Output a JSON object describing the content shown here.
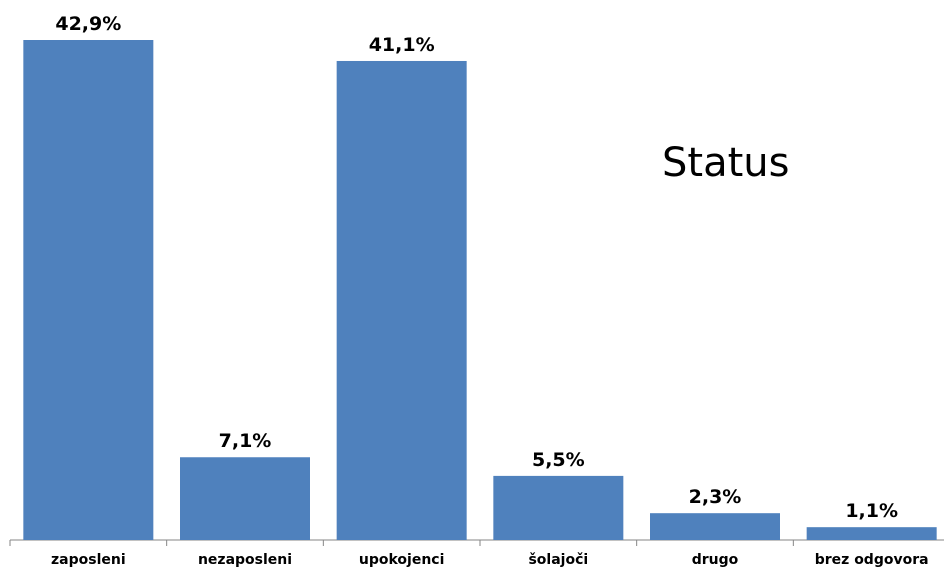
{
  "chart_data": {
    "type": "bar",
    "title": "Status",
    "xlabel": "",
    "ylabel": "",
    "categories": [
      "zaposleni",
      "nezaposleni",
      "upokojenci",
      "šolajoči",
      "drugo",
      "brez odgovora"
    ],
    "values": [
      42.9,
      7.1,
      41.1,
      5.5,
      2.3,
      1.1
    ],
    "data_labels": [
      "42,9%",
      "7,1%",
      "41,1%",
      "5,5%",
      "2,3%",
      "1,1%"
    ],
    "ylim": [
      0,
      45
    ],
    "grid": false,
    "legend": "none",
    "bar_color": "#4F81BD"
  }
}
